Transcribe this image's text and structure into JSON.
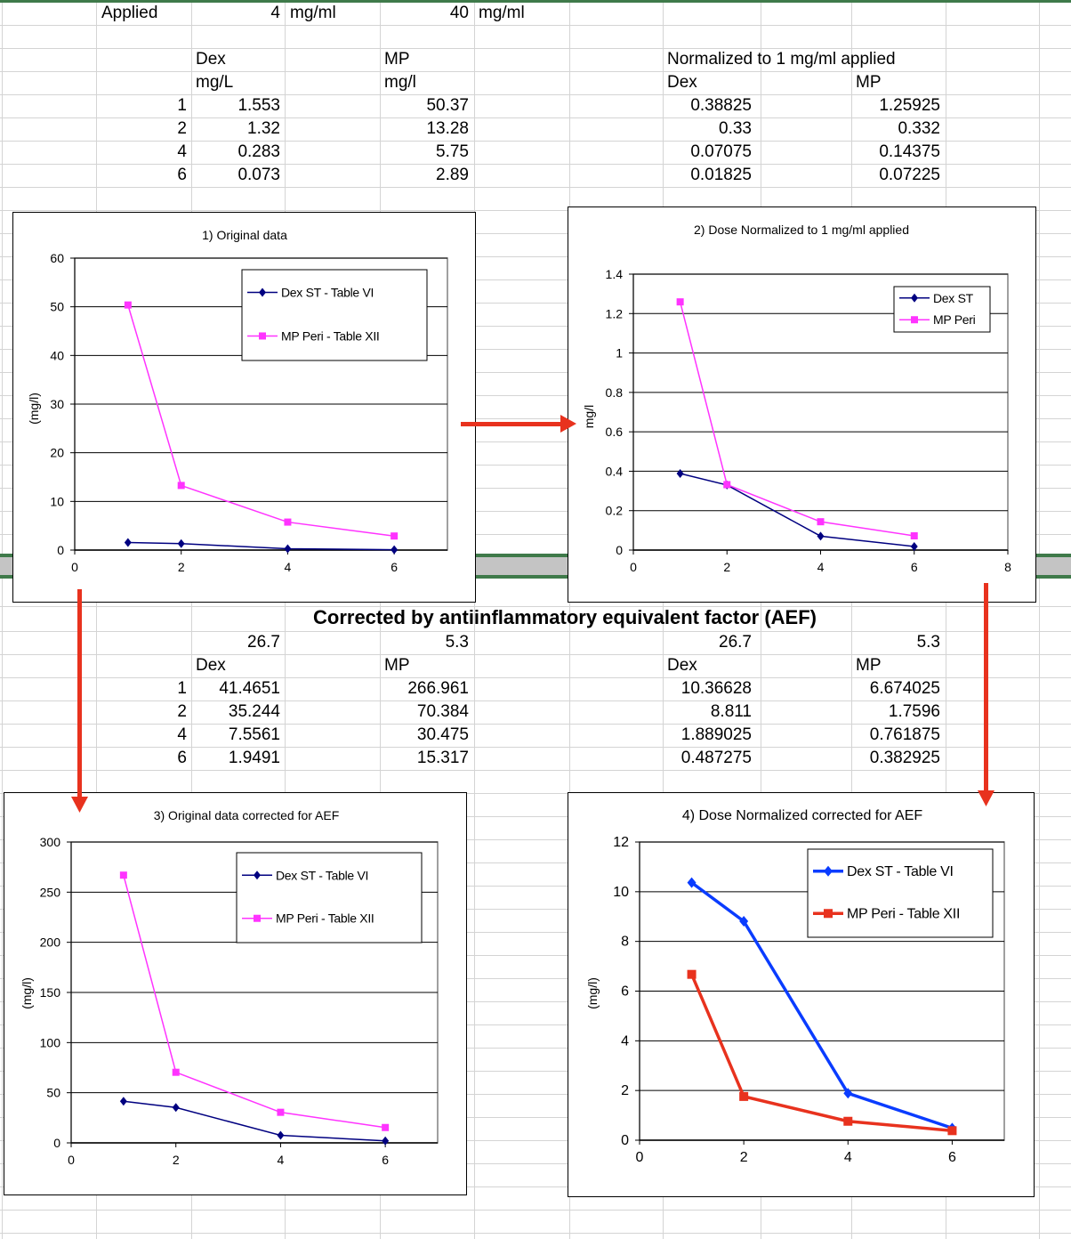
{
  "top_table": {
    "applied_label": "Applied",
    "dex_applied": "4",
    "dex_applied_unit": "mg/ml",
    "mp_applied": "40",
    "mp_applied_unit": "mg/ml",
    "dex_header": "Dex",
    "dex_unit": "mg/L",
    "mp_header": "MP",
    "mp_unit": "mg/l",
    "normalized_header": "Normalized to 1 mg/ml applied",
    "norm_dex_header": "Dex",
    "norm_mp_header": "MP",
    "rows": [
      {
        "t": "1",
        "dex": "1.553",
        "mp": "50.37",
        "ndex": "0.38825",
        "nmp": "1.25925"
      },
      {
        "t": "2",
        "dex": "1.32",
        "mp": "13.28",
        "ndex": "0.33",
        "nmp": "0.332"
      },
      {
        "t": "4",
        "dex": "0.283",
        "mp": "5.75",
        "ndex": "0.07075",
        "nmp": "0.14375"
      },
      {
        "t": "6",
        "dex": "0.073",
        "mp": "2.89",
        "ndex": "0.01825",
        "nmp": "0.07225"
      }
    ]
  },
  "bottom_table": {
    "title": "Corrected by antiinflammatory equivalent factor (AEF)",
    "dex_factor": "26.7",
    "mp_factor": "5.3",
    "ndex_factor": "26.7",
    "nmp_factor": "5.3",
    "dex_header": "Dex",
    "mp_header": "MP",
    "ndex_header": "Dex",
    "nmp_header": "MP",
    "rows": [
      {
        "t": "1",
        "dex": "41.4651",
        "mp": "266.961",
        "ndex": "10.36628",
        "nmp": "6.674025"
      },
      {
        "t": "2",
        "dex": "35.244",
        "mp": "70.384",
        "ndex": "8.811",
        "nmp": "1.7596"
      },
      {
        "t": "4",
        "dex": "7.5561",
        "mp": "30.475",
        "ndex": "1.889025",
        "nmp": "0.761875"
      },
      {
        "t": "6",
        "dex": "1.9491",
        "mp": "15.317",
        "ndex": "0.487275",
        "nmp": "0.382925"
      }
    ]
  },
  "chart_data": [
    {
      "type": "line",
      "title": "1) Original data",
      "xlabel": "",
      "ylabel": "(mg/l)",
      "xlim": [
        0,
        7
      ],
      "ylim": [
        0,
        60
      ],
      "xticks": [
        0,
        2,
        4,
        6
      ],
      "yticks": [
        0,
        10,
        20,
        30,
        40,
        50,
        60
      ],
      "grid": true,
      "legend": "top-right",
      "series": [
        {
          "name": "Dex ST - Table VI",
          "color": "#000080",
          "marker": "diamond",
          "x": [
            1,
            2,
            4,
            6
          ],
          "y": [
            1.553,
            1.32,
            0.283,
            0.073
          ]
        },
        {
          "name": "MP Peri - Table XII",
          "color": "#ff33ff",
          "marker": "square",
          "x": [
            1,
            2,
            4,
            6
          ],
          "y": [
            50.37,
            13.28,
            5.75,
            2.89
          ]
        }
      ]
    },
    {
      "type": "line",
      "title": "2) Dose Normalized to 1 mg/ml applied",
      "xlabel": "",
      "ylabel": "mg/l",
      "xlim": [
        0,
        8
      ],
      "ylim": [
        0,
        1.4
      ],
      "xticks": [
        0,
        2,
        4,
        6,
        8
      ],
      "yticks": [
        0,
        0.2,
        0.4,
        0.6,
        0.8,
        1,
        1.2,
        1.4
      ],
      "grid": true,
      "legend": "top-right",
      "series": [
        {
          "name": "Dex ST",
          "color": "#000080",
          "marker": "diamond",
          "x": [
            1,
            2,
            4,
            6
          ],
          "y": [
            0.38825,
            0.33,
            0.07075,
            0.01825
          ]
        },
        {
          "name": "MP Peri",
          "color": "#ff33ff",
          "marker": "square",
          "x": [
            1,
            2,
            4,
            6
          ],
          "y": [
            1.25925,
            0.332,
            0.14375,
            0.07225
          ]
        }
      ]
    },
    {
      "type": "line",
      "title": "3) Original data corrected for AEF",
      "xlabel": "",
      "ylabel": "(mg/l)",
      "xlim": [
        0,
        7
      ],
      "ylim": [
        0,
        300
      ],
      "xticks": [
        0,
        2,
        4,
        6
      ],
      "yticks": [
        0,
        50,
        100,
        150,
        200,
        250,
        300
      ],
      "grid": true,
      "legend": "top-right",
      "series": [
        {
          "name": "Dex ST - Table VI",
          "color": "#000080",
          "marker": "diamond",
          "x": [
            1,
            2,
            4,
            6
          ],
          "y": [
            41.4651,
            35.244,
            7.5561,
            1.9491
          ]
        },
        {
          "name": "MP Peri - Table XII",
          "color": "#ff33ff",
          "marker": "square",
          "x": [
            1,
            2,
            4,
            6
          ],
          "y": [
            266.961,
            70.384,
            30.475,
            15.317
          ]
        }
      ]
    },
    {
      "type": "line",
      "title": "4) Dose Normalized corrected for AEF",
      "xlabel": "",
      "ylabel": "(mg/l)",
      "xlim": [
        0,
        7
      ],
      "ylim": [
        0,
        12
      ],
      "xticks": [
        0,
        2,
        4,
        6
      ],
      "yticks": [
        0,
        2,
        4,
        6,
        8,
        10,
        12
      ],
      "grid": true,
      "legend": "top-right",
      "series": [
        {
          "name": "Dex ST - Table VI",
          "color": "#0a3cff",
          "marker": "diamond",
          "x": [
            1,
            2,
            4,
            6
          ],
          "y": [
            10.36628,
            8.811,
            1.889025,
            0.487275
          ]
        },
        {
          "name": "MP Peri - Table XII",
          "color": "#e8321e",
          "marker": "square",
          "x": [
            1,
            2,
            4,
            6
          ],
          "y": [
            6.674025,
            1.7596,
            0.761875,
            0.382925
          ]
        }
      ]
    }
  ]
}
